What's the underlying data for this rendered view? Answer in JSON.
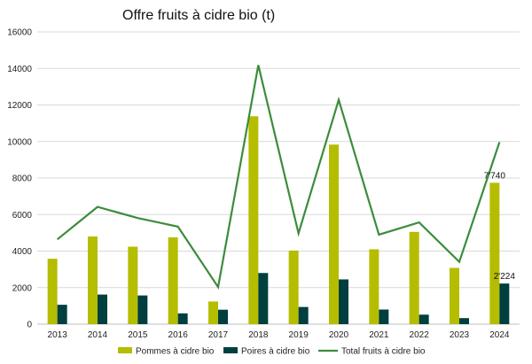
{
  "chart_data": {
    "type": "bar",
    "title": "Offre fruits à cidre bio (t)",
    "xlabel": "",
    "ylabel": "",
    "ylim": [
      0,
      16000
    ],
    "yticks": [
      0,
      2000,
      4000,
      6000,
      8000,
      10000,
      12000,
      14000,
      16000
    ],
    "grid": true,
    "legend_position": "bottom",
    "categories": [
      "2013",
      "2014",
      "2015",
      "2016",
      "2017",
      "2018",
      "2019",
      "2020",
      "2021",
      "2022",
      "2023",
      "2024"
    ],
    "series": [
      {
        "name": "Pommes à cidre bio",
        "type": "bar",
        "color": "#B5BD00",
        "values": [
          3580,
          4800,
          4240,
          4750,
          1240,
          11380,
          4030,
          9830,
          4100,
          5050,
          3080,
          7740
        ]
      },
      {
        "name": "Poires à cidre bio",
        "type": "bar",
        "color": "#003F3F",
        "values": [
          1060,
          1620,
          1570,
          590,
          790,
          2800,
          940,
          2450,
          800,
          520,
          330,
          2224
        ]
      },
      {
        "name": "Total fruits à cidre bio",
        "type": "line",
        "color": "#3C8C3C",
        "values": [
          4640,
          6420,
          5810,
          5340,
          2030,
          14180,
          4970,
          12280,
          4900,
          5570,
          3410,
          9964
        ]
      }
    ],
    "data_labels": [
      {
        "series": 0,
        "index": 11,
        "text": "7'740"
      },
      {
        "series": 1,
        "index": 11,
        "text": "2'224"
      }
    ]
  }
}
